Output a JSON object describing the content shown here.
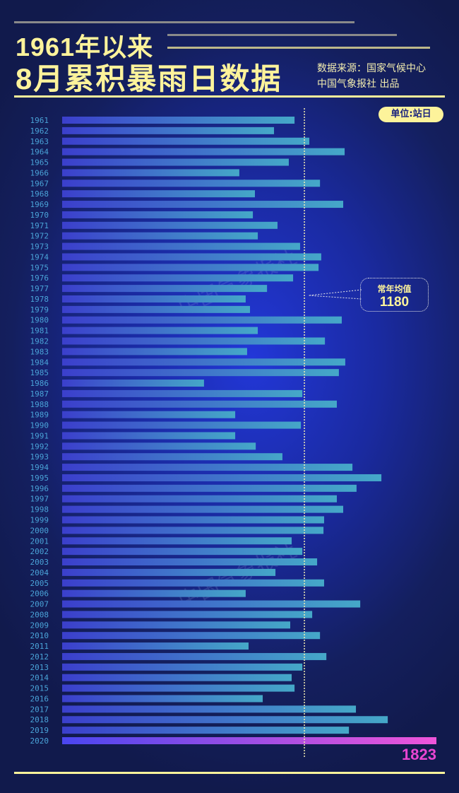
{
  "header": {
    "title_line1": "1961年以来",
    "title_line2": "8月累积暴雨日数据",
    "source": "数据来源：国家气候中心",
    "publisher": "中国气象报社 出品"
  },
  "unit_badge": "单位:站日",
  "average": {
    "label": "常年均值",
    "value_text": "1180"
  },
  "highlight": {
    "value_text": "1823"
  },
  "watermark": "中国气象报社",
  "colors": {
    "title": "#fdf39b",
    "bar_start": "#3b3fcc",
    "bar_end": "#45a8c8",
    "highlight_start": "#4a46f0",
    "highlight_end": "#ef55d9",
    "year_label": "#4aa3d8"
  },
  "chart_data": {
    "type": "bar",
    "orientation": "horizontal",
    "title": "1961年以来8月累积暴雨日数据",
    "unit": "站日",
    "xlim": [
      0,
      1823
    ],
    "reference_line": 1180,
    "categories": [
      "1961",
      "1962",
      "1963",
      "1964",
      "1965",
      "1966",
      "1967",
      "1968",
      "1969",
      "1970",
      "1971",
      "1972",
      "1973",
      "1974",
      "1975",
      "1976",
      "1977",
      "1978",
      "1979",
      "1980",
      "1981",
      "1982",
      "1983",
      "1984",
      "1985",
      "1986",
      "1987",
      "1988",
      "1989",
      "1990",
      "1991",
      "1992",
      "1993",
      "1994",
      "1995",
      "1996",
      "1997",
      "1998",
      "1999",
      "2000",
      "2001",
      "2002",
      "2003",
      "2004",
      "2005",
      "2006",
      "2007",
      "2008",
      "2009",
      "2010",
      "2011",
      "2012",
      "2013",
      "2014",
      "2015",
      "2016",
      "2017",
      "2018",
      "2019",
      "2020"
    ],
    "values": [
      1132,
      1032,
      1204,
      1376,
      1104,
      863,
      1256,
      939,
      1369,
      929,
      1049,
      953,
      1159,
      1262,
      1249,
      1125,
      998,
      894,
      915,
      1362,
      953,
      1280,
      901,
      1379,
      1348,
      691,
      1170,
      1338,
      843,
      1163,
      843,
      943,
      1073,
      1414,
      1555,
      1434,
      1338,
      1369,
      1276,
      1273,
      1118,
      1170,
      1242,
      1039,
      1276,
      894,
      1452,
      1218,
      1111,
      1256,
      908,
      1287,
      1170,
      1118,
      1132,
      977,
      1431,
      1586,
      1397,
      1823
    ]
  }
}
